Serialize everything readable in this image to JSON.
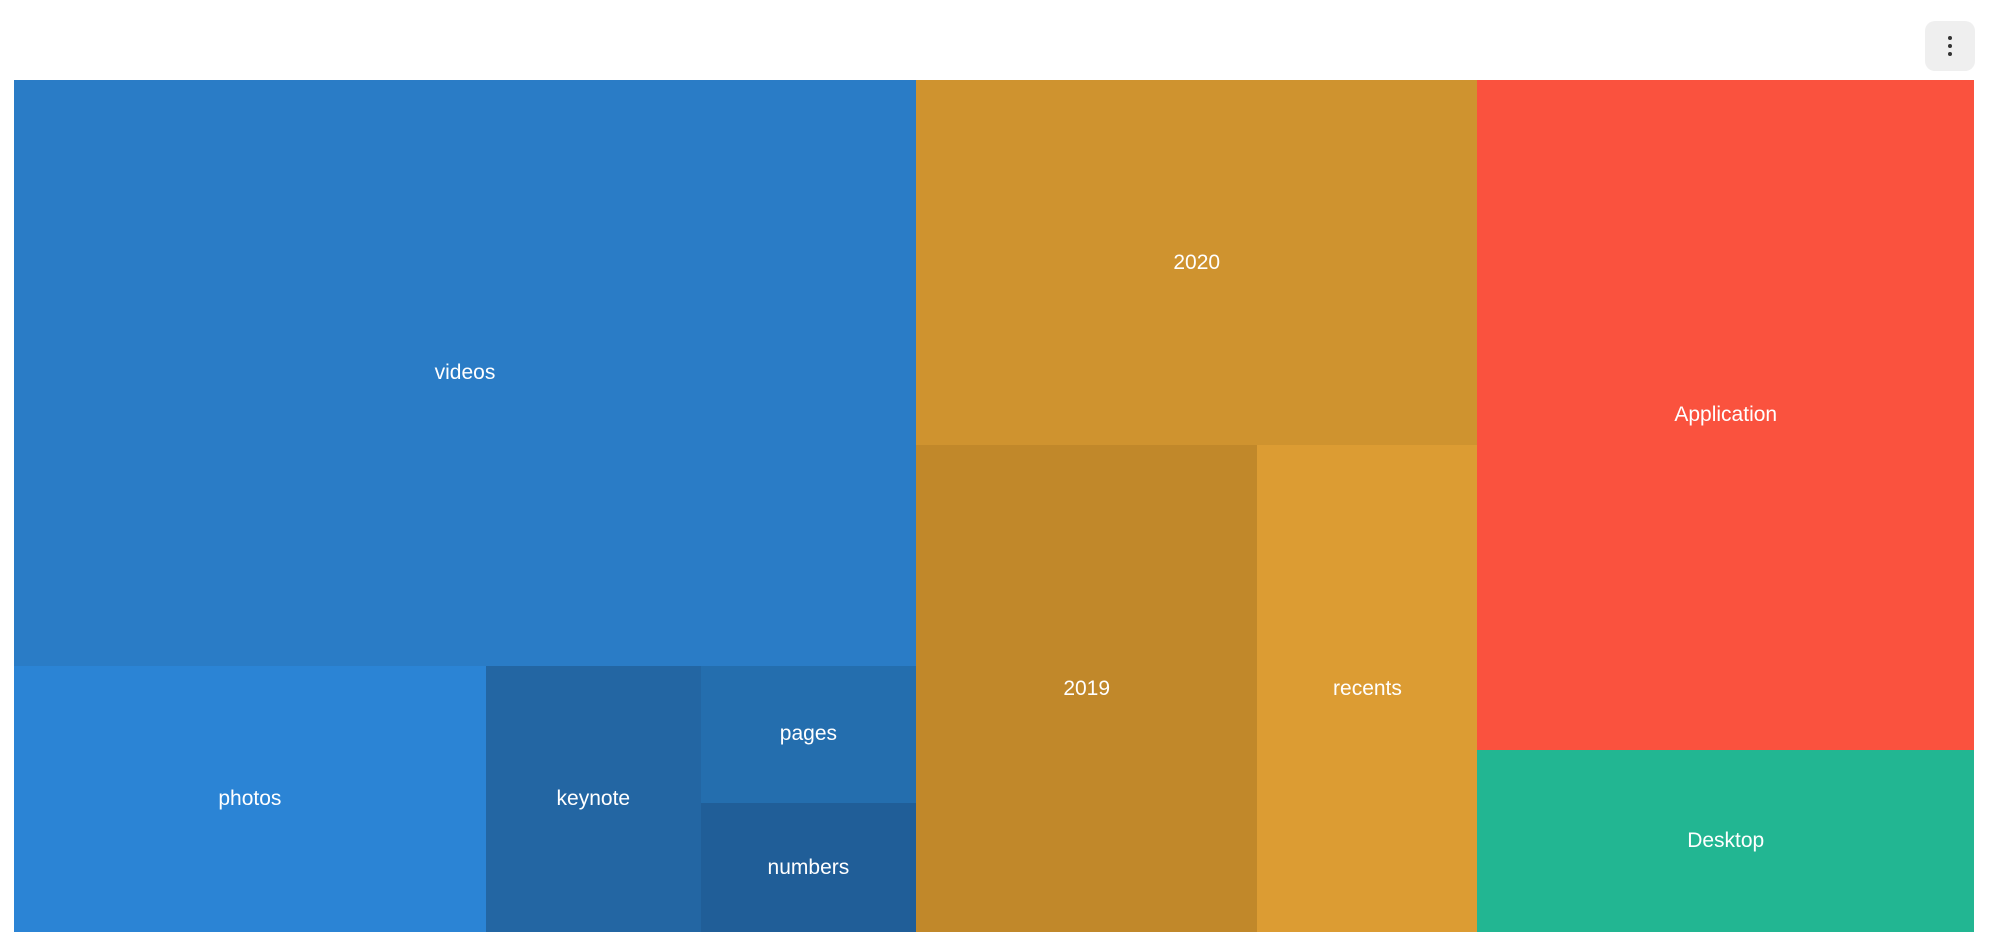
{
  "toolbar": {
    "menu_icon": "more-vertical-icon"
  },
  "chart_data": {
    "type": "treemap",
    "groups": [
      {
        "children": [
          {
            "name": "videos",
            "value": 28.6,
            "color": "#2a7cc6"
          },
          {
            "name": "photos",
            "value": 6.8,
            "color": "#2b84d5"
          },
          {
            "name": "keynote",
            "value": 3.1,
            "color": "#2366a3"
          },
          {
            "name": "pages",
            "value": 1.6,
            "color": "#246eae"
          },
          {
            "name": "numbers",
            "value": 1.5,
            "color": "#205e98"
          }
        ]
      },
      {
        "children": [
          {
            "name": "2020",
            "value": 11.1,
            "color": "#cf932f"
          },
          {
            "name": "2019",
            "value": 9.0,
            "color": "#c1882a"
          },
          {
            "name": "recents",
            "value": 5.8,
            "color": "#dc9c33"
          }
        ]
      },
      {
        "children": [
          {
            "name": "Application",
            "value": 18.0,
            "color": "#fa523e"
          },
          {
            "name": "Desktop",
            "value": 4.9,
            "color": "#22b692"
          }
        ]
      }
    ]
  }
}
